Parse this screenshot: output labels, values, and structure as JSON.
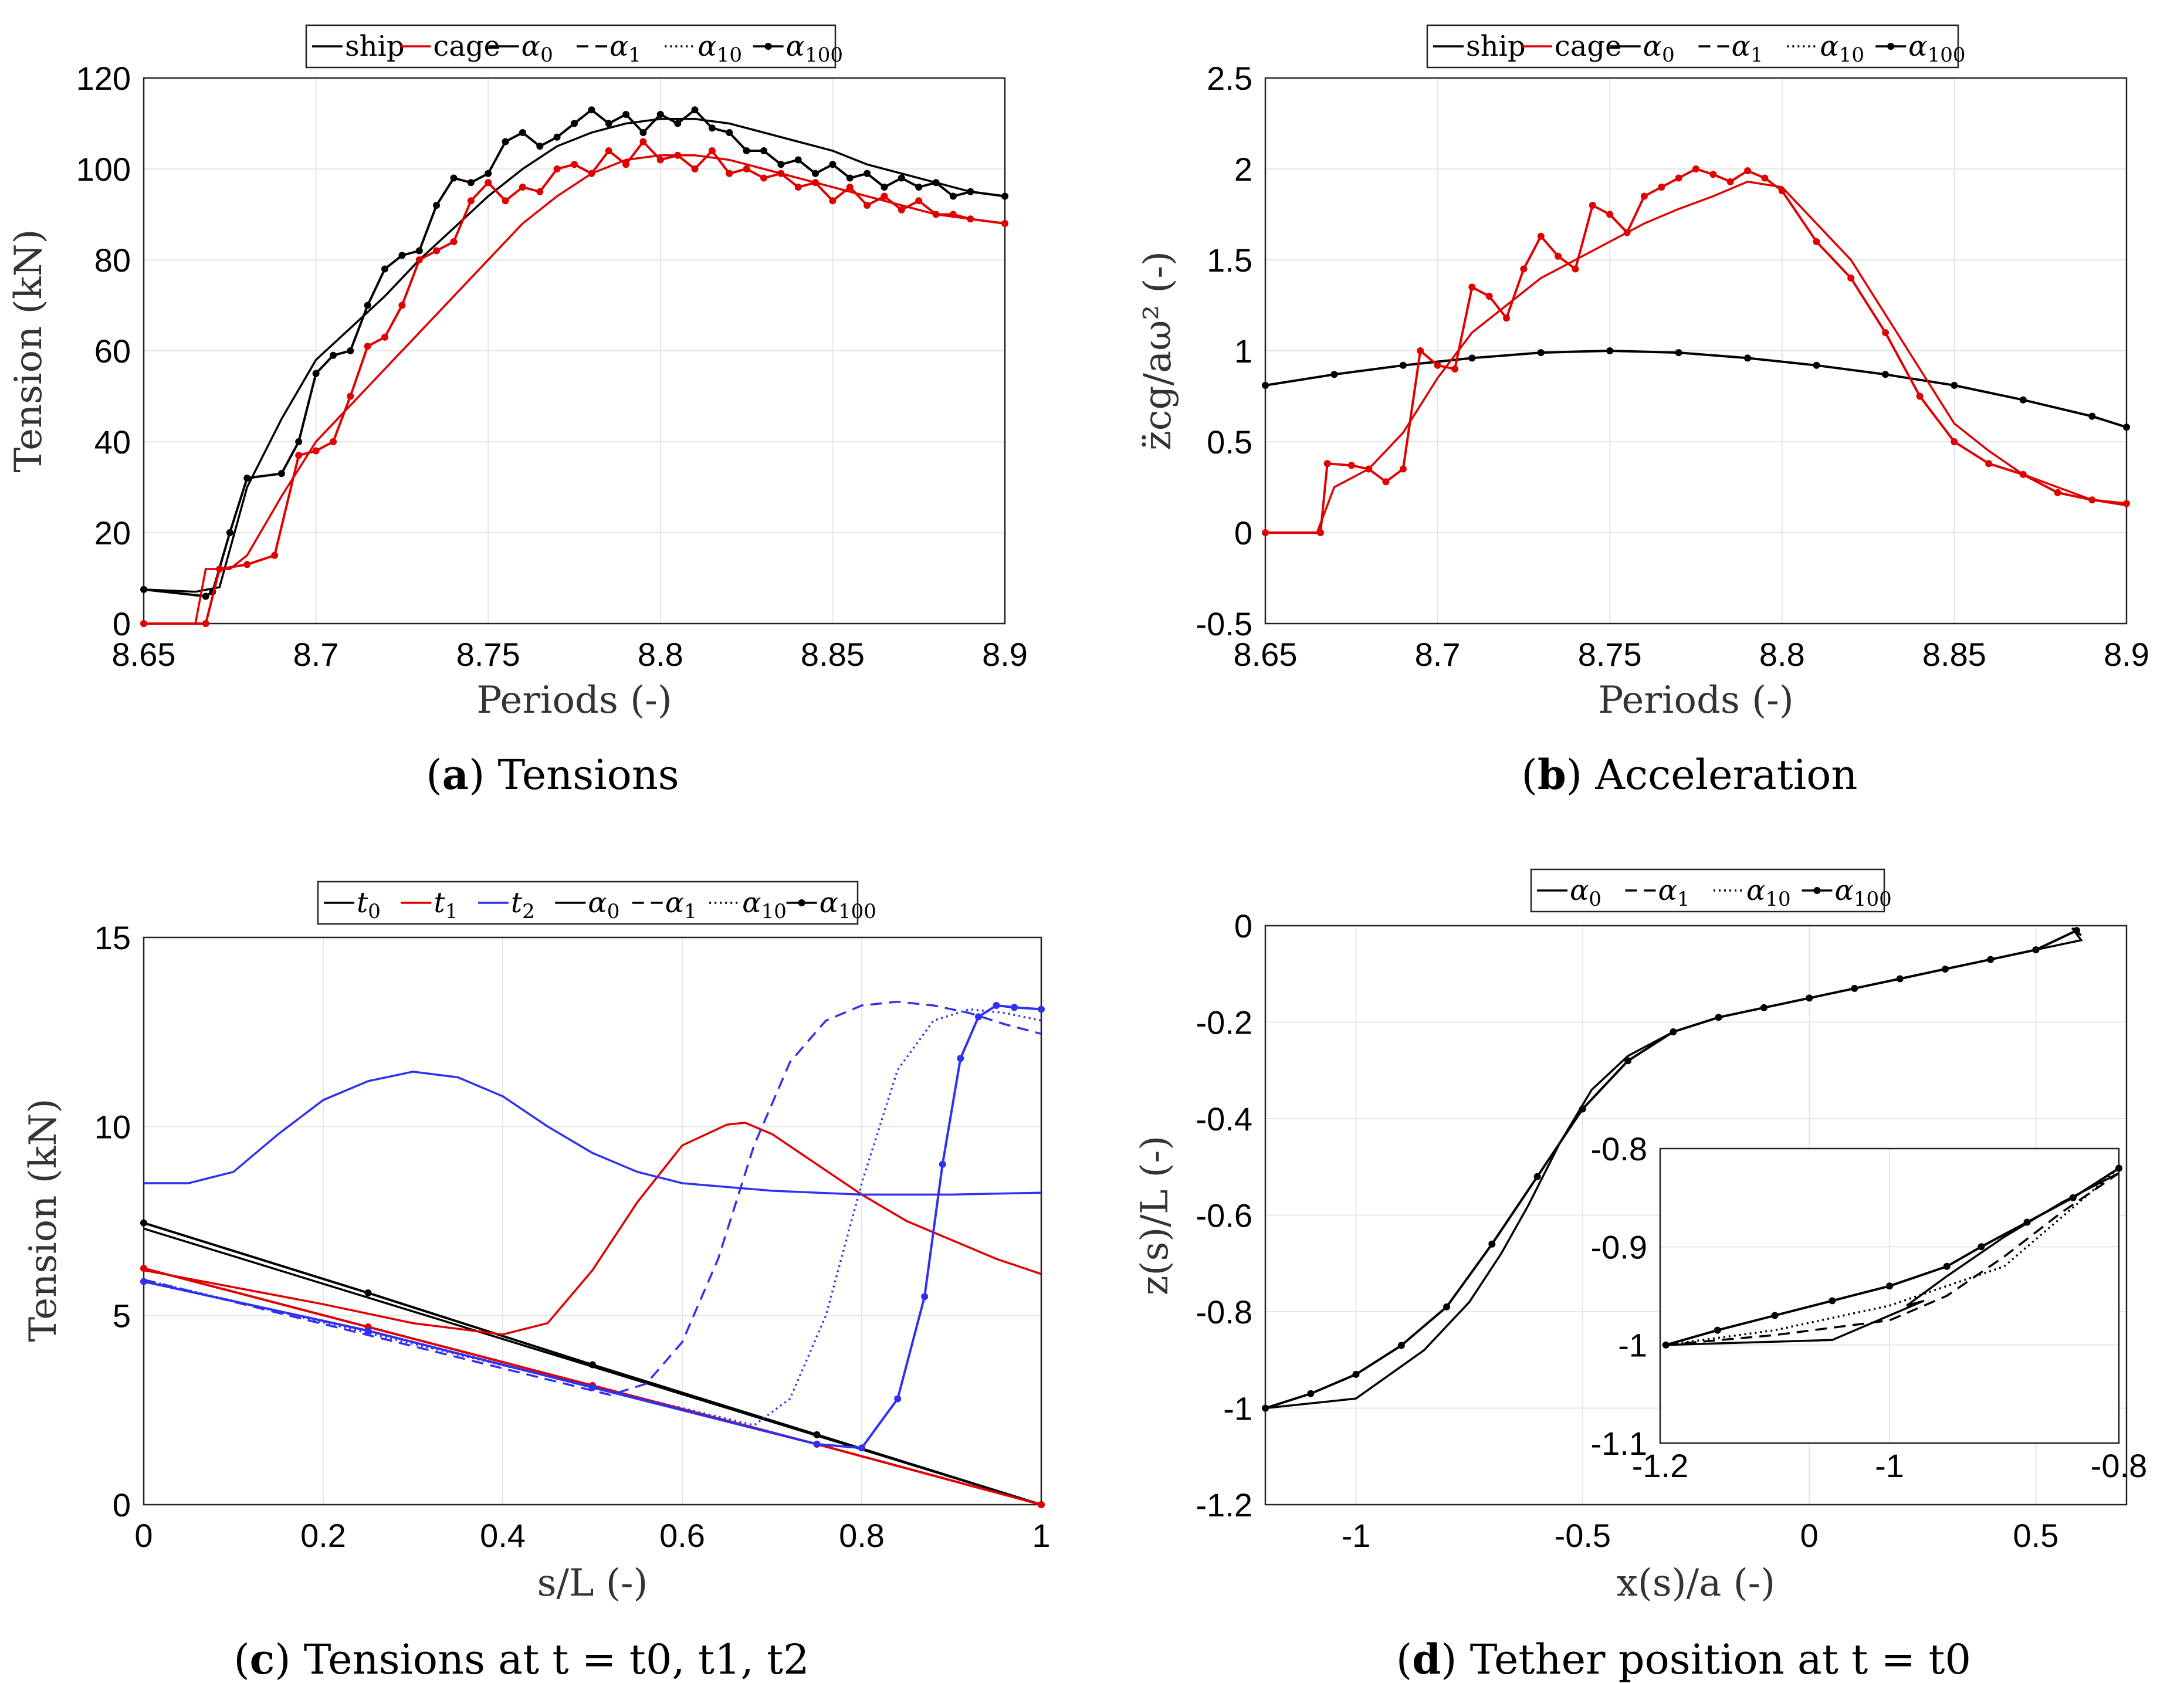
{
  "chart_data": [
    {
      "id": "a",
      "type": "line",
      "caption_label": "a",
      "caption_text": "Tensions",
      "xlabel": "Periods (-)",
      "ylabel": "Tension (kN)",
      "xlim": [
        8.65,
        8.9
      ],
      "ylim": [
        0,
        120
      ],
      "xticks": [
        "8.65",
        "8.7",
        "8.75",
        "8.8",
        "8.85",
        "8.9"
      ],
      "yticks": [
        "0",
        "20",
        "40",
        "60",
        "80",
        "100",
        "120"
      ],
      "legend": [
        "ship",
        "cage",
        "α0",
        "α1",
        "α10",
        "α100"
      ],
      "series": [
        {
          "name": "ship α0",
          "color": "#000000",
          "style": "solid",
          "x": [
            8.65,
            8.665,
            8.672,
            8.68,
            8.69,
            8.7,
            8.71,
            8.72,
            8.73,
            8.74,
            8.75,
            8.76,
            8.77,
            8.78,
            8.79,
            8.8,
            8.81,
            8.82,
            8.83,
            8.84,
            8.85,
            8.86,
            8.87,
            8.88,
            8.89,
            8.9
          ],
          "y": [
            7.5,
            7,
            8,
            30,
            45,
            58,
            65,
            72,
            80,
            87,
            94,
            100,
            105,
            108,
            110,
            111,
            111,
            110,
            108,
            106,
            104,
            101,
            99,
            97,
            95,
            94
          ]
        },
        {
          "name": "ship α100",
          "color": "#000000",
          "style": "dots",
          "x": [
            8.65,
            8.668,
            8.67,
            8.675,
            8.68,
            8.69,
            8.695,
            8.7,
            8.705,
            8.71,
            8.715,
            8.72,
            8.725,
            8.73,
            8.735,
            8.74,
            8.745,
            8.75,
            8.755,
            8.76,
            8.765,
            8.77,
            8.775,
            8.78,
            8.785,
            8.79,
            8.795,
            8.8,
            8.805,
            8.81,
            8.815,
            8.82,
            8.825,
            8.83,
            8.835,
            8.84,
            8.845,
            8.85,
            8.855,
            8.86,
            8.865,
            8.87,
            8.875,
            8.88,
            8.885,
            8.89,
            8.9
          ],
          "y": [
            7.5,
            6,
            7,
            20,
            32,
            33,
            40,
            55,
            59,
            60,
            70,
            78,
            81,
            82,
            92,
            98,
            97,
            99,
            106,
            108,
            105,
            107,
            110,
            113,
            110,
            112,
            108,
            112,
            110,
            113,
            109,
            108,
            104,
            104,
            101,
            102,
            99,
            101,
            98,
            99,
            96,
            98,
            96,
            97,
            94,
            95,
            94
          ]
        },
        {
          "name": "cage α0",
          "color": "#e00000",
          "style": "solid",
          "x": [
            8.65,
            8.665,
            8.668,
            8.675,
            8.68,
            8.69,
            8.7,
            8.71,
            8.72,
            8.73,
            8.74,
            8.75,
            8.76,
            8.77,
            8.78,
            8.79,
            8.8,
            8.81,
            8.82,
            8.83,
            8.84,
            8.85,
            8.86,
            8.87,
            8.88,
            8.89,
            8.9
          ],
          "y": [
            0,
            0,
            12,
            12,
            15,
            28,
            40,
            48,
            56,
            64,
            72,
            80,
            88,
            94,
            99,
            102,
            103,
            103,
            102,
            100,
            98,
            96,
            94,
            92,
            90,
            89,
            88
          ]
        },
        {
          "name": "cage α100",
          "color": "#e00000",
          "style": "dots",
          "x": [
            8.65,
            8.668,
            8.672,
            8.68,
            8.688,
            8.695,
            8.7,
            8.705,
            8.71,
            8.715,
            8.72,
            8.725,
            8.73,
            8.735,
            8.74,
            8.745,
            8.75,
            8.755,
            8.76,
            8.765,
            8.77,
            8.775,
            8.78,
            8.785,
            8.79,
            8.795,
            8.8,
            8.805,
            8.81,
            8.815,
            8.82,
            8.825,
            8.83,
            8.835,
            8.84,
            8.845,
            8.85,
            8.855,
            8.86,
            8.865,
            8.87,
            8.875,
            8.88,
            8.885,
            8.89,
            8.9
          ],
          "y": [
            0,
            0,
            12,
            13,
            15,
            37,
            38,
            40,
            50,
            61,
            63,
            70,
            80,
            82,
            84,
            93,
            97,
            93,
            96,
            95,
            100,
            101,
            99,
            104,
            101,
            106,
            102,
            103,
            100,
            104,
            99,
            100,
            98,
            99,
            96,
            97,
            93,
            96,
            92,
            94,
            91,
            93,
            90,
            90,
            89,
            88
          ]
        }
      ]
    },
    {
      "id": "b",
      "type": "line",
      "caption_label": "b",
      "caption_text": "Acceleration",
      "xlabel": "Periods (-)",
      "ylabel": "z̈cg/aω² (-)",
      "xlim": [
        8.65,
        8.9
      ],
      "ylim": [
        -0.5,
        2.5
      ],
      "xticks": [
        "8.65",
        "8.7",
        "8.75",
        "8.8",
        "8.85",
        "8.9"
      ],
      "yticks": [
        "-0.5",
        "0",
        "0.5",
        "1",
        "1.5",
        "2",
        "2.5"
      ],
      "legend": [
        "ship",
        "cage",
        "α0",
        "α1",
        "α10",
        "α100"
      ],
      "series": [
        {
          "name": "ship",
          "color": "#000000",
          "style": "dots",
          "x": [
            8.65,
            8.67,
            8.69,
            8.71,
            8.73,
            8.75,
            8.77,
            8.79,
            8.81,
            8.83,
            8.85,
            8.87,
            8.89,
            8.9
          ],
          "y": [
            0.81,
            0.87,
            0.92,
            0.96,
            0.99,
            1.0,
            0.99,
            0.96,
            0.92,
            0.87,
            0.81,
            0.73,
            0.64,
            0.58
          ]
        },
        {
          "name": "cage α0",
          "color": "#e00000",
          "style": "solid",
          "x": [
            8.65,
            8.665,
            8.67,
            8.68,
            8.69,
            8.7,
            8.71,
            8.72,
            8.73,
            8.74,
            8.75,
            8.76,
            8.77,
            8.78,
            8.79,
            8.8,
            8.81,
            8.82,
            8.83,
            8.84,
            8.85,
            8.86,
            8.87,
            8.88,
            8.89,
            8.9
          ],
          "y": [
            0,
            0,
            0.25,
            0.35,
            0.55,
            0.85,
            1.1,
            1.25,
            1.4,
            1.5,
            1.6,
            1.7,
            1.78,
            1.85,
            1.93,
            1.9,
            1.7,
            1.5,
            1.2,
            0.9,
            0.6,
            0.45,
            0.32,
            0.25,
            0.18,
            0.15
          ]
        },
        {
          "name": "cage α100",
          "color": "#e00000",
          "style": "dots",
          "x": [
            8.65,
            8.666,
            8.668,
            8.675,
            8.68,
            8.685,
            8.69,
            8.695,
            8.7,
            8.705,
            8.71,
            8.715,
            8.72,
            8.725,
            8.73,
            8.735,
            8.74,
            8.745,
            8.75,
            8.755,
            8.76,
            8.765,
            8.77,
            8.775,
            8.78,
            8.785,
            8.79,
            8.795,
            8.8,
            8.81,
            8.82,
            8.83,
            8.84,
            8.85,
            8.86,
            8.87,
            8.88,
            8.89,
            8.9
          ],
          "y": [
            0,
            0,
            0.38,
            0.37,
            0.35,
            0.28,
            0.35,
            1.0,
            0.92,
            0.9,
            1.35,
            1.3,
            1.18,
            1.45,
            1.63,
            1.52,
            1.45,
            1.8,
            1.75,
            1.65,
            1.85,
            1.9,
            1.95,
            2.0,
            1.97,
            1.93,
            1.99,
            1.95,
            1.88,
            1.6,
            1.4,
            1.1,
            0.75,
            0.5,
            0.38,
            0.32,
            0.22,
            0.18,
            0.16
          ]
        }
      ]
    },
    {
      "id": "c",
      "type": "line",
      "caption_label": "c",
      "caption_text": "Tensions at t = t0, t1, t2",
      "xlabel": "s/L (-)",
      "ylabel": "Tension (kN)",
      "xlim": [
        0,
        1
      ],
      "ylim": [
        0,
        15
      ],
      "xticks": [
        "0",
        "0.2",
        "0.4",
        "0.6",
        "0.8",
        "1"
      ],
      "yticks": [
        "0",
        "5",
        "10",
        "15"
      ],
      "legend": [
        "t0",
        "t1",
        "t2",
        "α0",
        "α1",
        "α10",
        "α100"
      ],
      "series": [
        {
          "name": "t0 α0",
          "color": "#000000",
          "style": "solid",
          "x": [
            0,
            1
          ],
          "y": [
            7.3,
            0
          ]
        },
        {
          "name": "t0 α100",
          "color": "#000000",
          "style": "dots",
          "x": [
            0,
            0.25,
            0.5,
            0.75,
            1
          ],
          "y": [
            7.45,
            5.6,
            3.7,
            1.85,
            0
          ]
        },
        {
          "name": "t1 α0",
          "color": "#e00000",
          "style": "solid",
          "x": [
            0,
            0.2,
            0.3,
            0.4,
            0.45,
            0.5,
            0.55,
            0.6,
            0.65,
            0.67,
            0.7,
            0.75,
            0.8,
            0.85,
            0.9,
            0.95,
            1
          ],
          "y": [
            6.2,
            5.3,
            4.8,
            4.5,
            4.8,
            6.2,
            8.0,
            9.5,
            10.05,
            10.1,
            9.8,
            9.0,
            8.2,
            7.5,
            7.0,
            6.5,
            6.1
          ]
        },
        {
          "name": "t1 α100",
          "color": "#e00000",
          "style": "dots",
          "x": [
            0,
            0.25,
            0.5,
            0.75,
            1
          ],
          "y": [
            6.25,
            4.7,
            3.15,
            1.6,
            0
          ]
        },
        {
          "name": "t2 α0",
          "color": "#3030f0",
          "style": "solid",
          "x": [
            0,
            0.05,
            0.1,
            0.15,
            0.2,
            0.25,
            0.3,
            0.35,
            0.4,
            0.45,
            0.5,
            0.55,
            0.6,
            0.7,
            0.8,
            0.9,
            1
          ],
          "y": [
            8.5,
            8.5,
            8.8,
            9.8,
            10.7,
            11.2,
            11.45,
            11.3,
            10.8,
            10.0,
            9.3,
            8.8,
            8.5,
            8.3,
            8.2,
            8.2,
            8.25
          ]
        },
        {
          "name": "t2 α1",
          "color": "#3030f0",
          "style": "dashed",
          "x": [
            0,
            0.52,
            0.56,
            0.6,
            0.64,
            0.68,
            0.72,
            0.76,
            0.8,
            0.84,
            0.88,
            0.92,
            0.96,
            1
          ],
          "y": [
            5.95,
            2.9,
            3.2,
            4.3,
            6.5,
            9.5,
            11.7,
            12.8,
            13.2,
            13.3,
            13.2,
            13.0,
            12.7,
            12.45
          ]
        },
        {
          "name": "t2 α10",
          "color": "#3030f0",
          "style": "dotted",
          "x": [
            0,
            0.68,
            0.72,
            0.76,
            0.8,
            0.84,
            0.88,
            0.92,
            0.96,
            1
          ],
          "y": [
            5.95,
            2.1,
            2.8,
            5.0,
            8.5,
            11.5,
            12.8,
            13.1,
            13.0,
            12.8
          ]
        },
        {
          "name": "t2 α100",
          "color": "#3030f0",
          "style": "dots",
          "x": [
            0,
            0.25,
            0.5,
            0.75,
            0.8,
            0.84,
            0.87,
            0.89,
            0.91,
            0.93,
            0.95,
            0.97,
            1
          ],
          "y": [
            5.9,
            4.6,
            3.1,
            1.6,
            1.5,
            2.8,
            5.5,
            9.0,
            11.8,
            12.9,
            13.2,
            13.15,
            13.1
          ]
        }
      ]
    },
    {
      "id": "d",
      "type": "line",
      "caption_label": "d",
      "caption_text": "Tether position at t = t0",
      "xlabel": "x(s)/a (-)",
      "ylabel": "z(s)/L (-)",
      "xlim": [
        -1.2,
        0.7
      ],
      "ylim": [
        -1.2,
        0
      ],
      "xticks": [
        "-1",
        "-0.5",
        "0",
        "0.5"
      ],
      "yticks": [
        "-1.2",
        "-1",
        "-0.8",
        "-0.6",
        "-0.4",
        "-0.2",
        "0"
      ],
      "legend": [
        "α0",
        "α1",
        "α10",
        "α100"
      ],
      "series": [
        {
          "name": "α0",
          "color": "#000000",
          "style": "solid",
          "x": [
            -1.2,
            -1.0,
            -0.85,
            -0.75,
            -0.68,
            -0.62,
            -0.55,
            -0.48,
            -0.4,
            -0.3,
            -0.2,
            -0.1,
            0,
            0.1,
            0.2,
            0.3,
            0.4,
            0.5,
            0.6,
            0.58,
            0.6
          ],
          "y": [
            -1.0,
            -0.98,
            -0.88,
            -0.78,
            -0.68,
            -0.58,
            -0.45,
            -0.34,
            -0.27,
            -0.22,
            -0.19,
            -0.17,
            -0.15,
            -0.13,
            -0.11,
            -0.09,
            -0.07,
            -0.05,
            -0.03,
            -0.005,
            -0.02
          ]
        },
        {
          "name": "α100",
          "color": "#000000",
          "style": "dots",
          "x": [
            -1.2,
            -1.1,
            -1.0,
            -0.9,
            -0.8,
            -0.7,
            -0.6,
            -0.5,
            -0.4,
            -0.3,
            -0.2,
            -0.1,
            0,
            0.1,
            0.2,
            0.3,
            0.4,
            0.5,
            0.59
          ],
          "y": [
            -1.0,
            -0.97,
            -0.93,
            -0.87,
            -0.79,
            -0.66,
            -0.52,
            -0.38,
            -0.28,
            -0.22,
            -0.19,
            -0.17,
            -0.15,
            -0.13,
            -0.11,
            -0.09,
            -0.07,
            -0.05,
            -0.01
          ]
        }
      ],
      "inset": {
        "xlim": [
          -1.2,
          -0.8
        ],
        "ylim": [
          -1.1,
          -0.8
        ],
        "xticks": [
          "-1.2",
          "-1",
          "-0.8"
        ],
        "yticks": [
          "-1.1",
          "-1",
          "-0.9",
          "-0.8"
        ],
        "series": [
          {
            "name": "α0",
            "color": "#000000",
            "style": "solid",
            "x": [
              -1.195,
              -1.05,
              -0.97,
              -0.985,
              -0.95,
              -0.9,
              -0.85,
              -0.8
            ],
            "y": [
              -1.0,
              -0.995,
              -0.955,
              -0.96,
              -0.93,
              -0.89,
              -0.855,
              -0.825
            ]
          },
          {
            "name": "α1",
            "color": "#000000",
            "style": "dashed",
            "x": [
              -1.195,
              -1.1,
              -1.0,
              -0.95,
              -0.9,
              -0.85,
              -0.8
            ],
            "y": [
              -1.0,
              -0.99,
              -0.975,
              -0.95,
              -0.91,
              -0.865,
              -0.825
            ]
          },
          {
            "name": "α10",
            "color": "#000000",
            "style": "dotted",
            "x": [
              -1.195,
              -1.1,
              -1.0,
              -0.9,
              -0.85,
              -0.8
            ],
            "y": [
              -1.0,
              -0.985,
              -0.96,
              -0.92,
              -0.87,
              -0.82
            ]
          },
          {
            "name": "α100",
            "color": "#000000",
            "style": "dots",
            "x": [
              -1.195,
              -1.15,
              -1.1,
              -1.05,
              -1.0,
              -0.95,
              -0.92,
              -0.88,
              -0.84,
              -0.8
            ],
            "y": [
              -1.0,
              -0.985,
              -0.97,
              -0.955,
              -0.94,
              -0.92,
              -0.9,
              -0.875,
              -0.85,
              -0.82
            ]
          }
        ]
      }
    }
  ]
}
